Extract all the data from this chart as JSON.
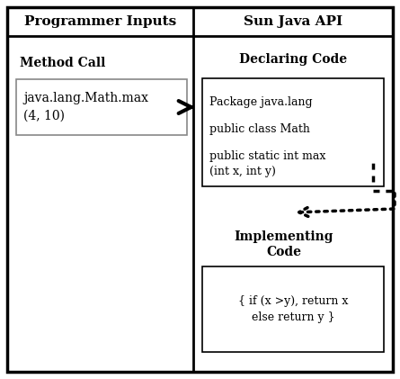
{
  "title_left": "Programmer Inputs",
  "title_right": "Sun Java API",
  "subtitle_left": "Method Call",
  "subtitle_right_1": "Declaring Code",
  "subtitle_right_2": "Implementing\nCode",
  "method_call_text": "java.lang.Math.max\n(4, 10)",
  "declaring_line1": "Package java.lang",
  "declaring_line2": "public class Math",
  "declaring_line3": "public static int max\n(int x, int y)",
  "implementing_text": "{ if (x >y), return x\nelse return y }",
  "bg_color": "#ffffff",
  "border_color": "#000000",
  "text_color": "#000000",
  "fig_width": 4.45,
  "fig_height": 4.21
}
